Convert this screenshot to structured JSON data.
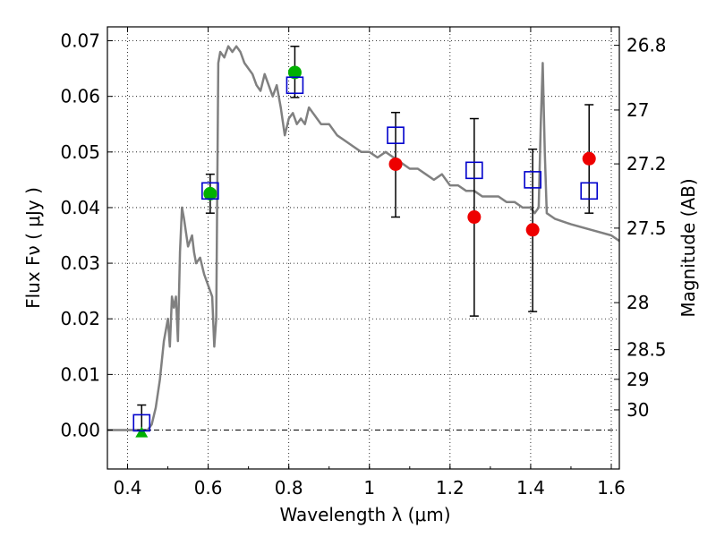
{
  "chart_data": {
    "type": "scatter",
    "xlabel": "Wavelength  λ (μm)",
    "ylabel": "Flux  Fν  ( μJy )",
    "y2label": "Magnitude (AB)",
    "xlim": [
      0.35,
      1.62
    ],
    "ylim": [
      -0.007,
      0.0725
    ],
    "grid": true,
    "x_ticks": [
      "0.4",
      "0.6",
      "0.8",
      "1",
      "1.2",
      "1.4",
      "1.6"
    ],
    "y_ticks": [
      "0.00",
      "0.01",
      "0.02",
      "0.03",
      "0.04",
      "0.05",
      "0.06",
      "0.07"
    ],
    "mag_ticks": [
      "26.8",
      "27",
      "27.2",
      "27.5",
      "28",
      "28.5",
      "29",
      "30"
    ],
    "colors": {
      "model": "#808080",
      "model_points": "#0000cc",
      "detections": "#00b000",
      "upper": "#ee0000",
      "errorbars": "#000000"
    },
    "series": [
      {
        "kind": "line",
        "x": [
          0.35,
          0.45,
          0.46,
          0.47,
          0.48,
          0.49,
          0.5,
          0.505,
          0.51,
          0.515,
          0.52,
          0.525,
          0.53,
          0.535,
          0.54,
          0.55,
          0.56,
          0.565,
          0.57,
          0.58,
          0.59,
          0.6,
          0.61,
          0.615,
          0.62,
          0.625,
          0.63,
          0.64,
          0.65,
          0.66,
          0.67,
          0.68,
          0.69,
          0.7,
          0.71,
          0.72,
          0.73,
          0.74,
          0.75,
          0.76,
          0.77,
          0.78,
          0.79,
          0.8,
          0.81,
          0.82,
          0.83,
          0.84,
          0.85,
          0.86,
          0.87,
          0.88,
          0.9,
          0.92,
          0.94,
          0.96,
          0.98,
          1.0,
          1.02,
          1.04,
          1.06,
          1.08,
          1.1,
          1.12,
          1.14,
          1.16,
          1.18,
          1.2,
          1.22,
          1.24,
          1.26,
          1.28,
          1.3,
          1.32,
          1.34,
          1.36,
          1.38,
          1.4,
          1.41,
          1.42,
          1.425,
          1.43,
          1.435,
          1.44,
          1.46,
          1.5,
          1.55,
          1.6,
          1.62
        ],
        "y": [
          0.0,
          0.0,
          0.001,
          0.004,
          0.009,
          0.016,
          0.02,
          0.015,
          0.024,
          0.022,
          0.024,
          0.016,
          0.032,
          0.04,
          0.038,
          0.033,
          0.035,
          0.032,
          0.03,
          0.031,
          0.028,
          0.026,
          0.024,
          0.015,
          0.02,
          0.066,
          0.068,
          0.067,
          0.069,
          0.068,
          0.069,
          0.068,
          0.066,
          0.065,
          0.064,
          0.062,
          0.061,
          0.064,
          0.062,
          0.06,
          0.062,
          0.058,
          0.053,
          0.056,
          0.057,
          0.055,
          0.056,
          0.055,
          0.058,
          0.057,
          0.056,
          0.055,
          0.055,
          0.053,
          0.052,
          0.051,
          0.05,
          0.05,
          0.049,
          0.05,
          0.049,
          0.048,
          0.047,
          0.047,
          0.046,
          0.045,
          0.046,
          0.044,
          0.044,
          0.043,
          0.043,
          0.042,
          0.042,
          0.042,
          0.041,
          0.041,
          0.04,
          0.04,
          0.039,
          0.04,
          0.055,
          0.066,
          0.05,
          0.039,
          0.038,
          0.037,
          0.036,
          0.035,
          0.034
        ]
      },
      {
        "kind": "open-square",
        "x": [
          0.435,
          0.605,
          0.815,
          1.065,
          1.26,
          1.405,
          1.545
        ],
        "y": [
          0.0013,
          0.043,
          0.062,
          0.053,
          0.0467,
          0.045,
          0.043
        ]
      },
      {
        "kind": "filled-circle",
        "x": [
          0.605,
          0.815
        ],
        "y": [
          0.0425,
          0.0643
        ],
        "yerr_low": [
          0.0035,
          0.0045
        ],
        "yerr_high": [
          0.0035,
          0.0047
        ]
      },
      {
        "kind": "filled-circle",
        "x": [
          1.065,
          1.26,
          1.405,
          1.545
        ],
        "y": [
          0.0478,
          0.0383,
          0.036,
          0.0488
        ],
        "yerr_low": [
          0.0095,
          0.0178,
          0.0147,
          0.0098
        ],
        "yerr_high": [
          0.0093,
          0.0177,
          0.0145,
          0.0097
        ]
      },
      {
        "kind": "triangle",
        "x": [
          0.435
        ],
        "y": [
          -0.0005
        ],
        "err_bar_x": [
          0.435
        ],
        "err_bar_low": [
          0.0
        ],
        "err_bar_high": [
          0.0045
        ]
      }
    ]
  }
}
